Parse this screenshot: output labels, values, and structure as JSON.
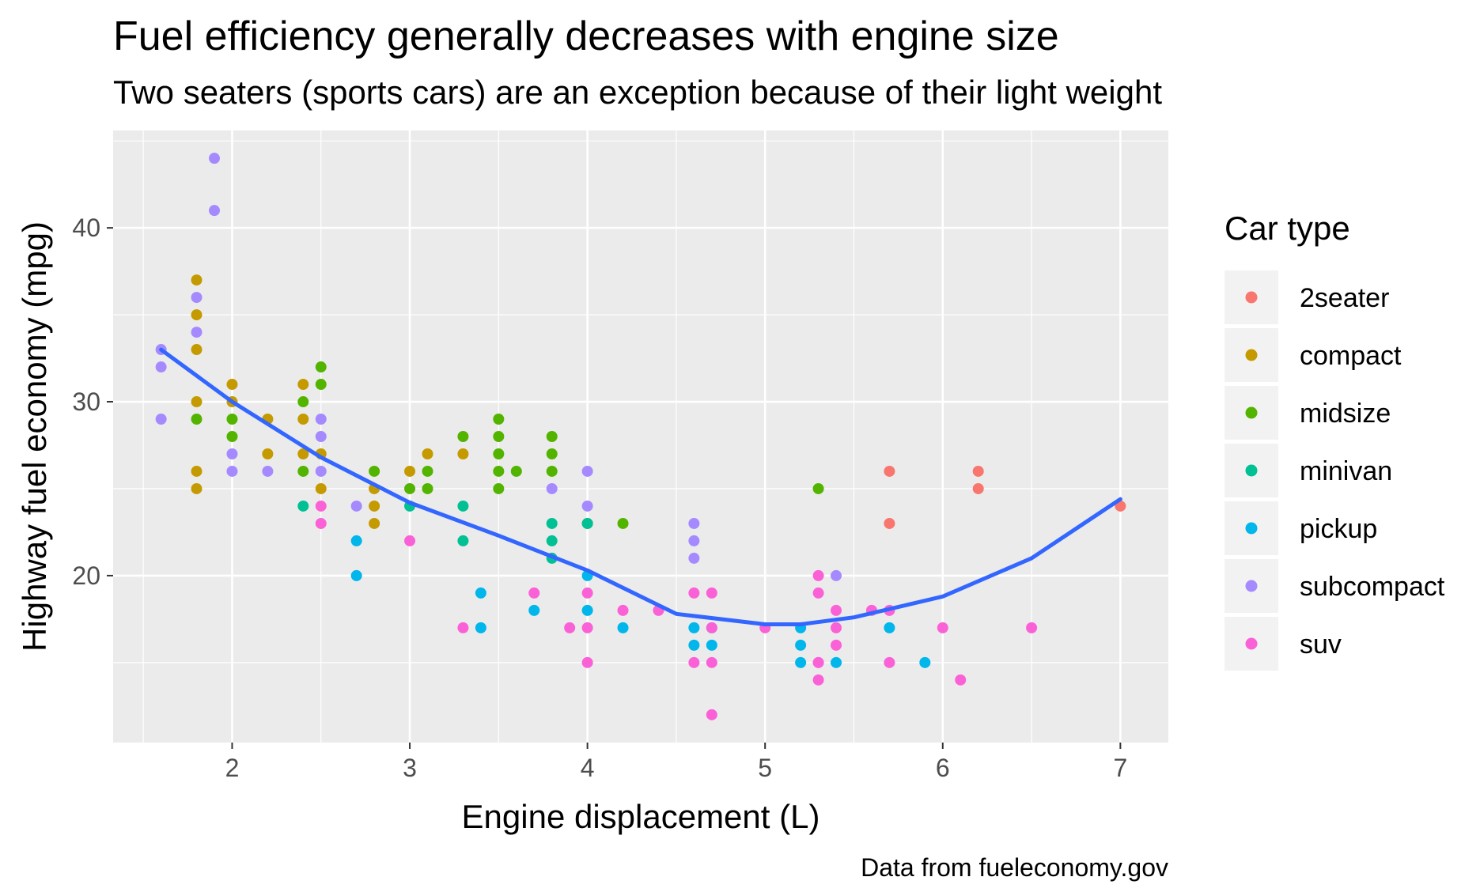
{
  "chart_data": {
    "type": "scatter",
    "title": "Fuel efficiency generally decreases with engine size",
    "subtitle": "Two seaters (sports cars) are an exception because of their light weight",
    "caption": "Data from fueleconomy.gov",
    "xlabel": "Engine displacement (L)",
    "ylabel": "Highway fuel economy (mpg)",
    "xlim": [
      1.33,
      7.27
    ],
    "ylim": [
      10.4,
      45.6
    ],
    "xticks": [
      2,
      3,
      4,
      5,
      6,
      7
    ],
    "yticks": [
      20,
      30,
      40
    ],
    "xtick_labels": [
      "2",
      "3",
      "4",
      "5",
      "6",
      "7"
    ],
    "ytick_labels": [
      "20",
      "30",
      "40"
    ],
    "grid": true,
    "legend": {
      "title": "Car type",
      "position": "right"
    },
    "series": [
      {
        "name": "2seater",
        "color": "#F8766D",
        "x": [
          5.7,
          5.7,
          6.2,
          6.2,
          7.0
        ],
        "y": [
          26,
          23,
          26,
          25,
          24
        ]
      },
      {
        "name": "compact",
        "color": "#C49A00",
        "x": [
          1.8,
          1.8,
          1.8,
          1.8,
          1.8,
          1.8,
          2.0,
          2.0,
          2.2,
          2.2,
          2.4,
          2.4,
          2.4,
          2.5,
          2.5,
          2.8,
          2.8,
          2.8,
          3.0,
          3.1,
          3.3
        ],
        "y": [
          37,
          35,
          33,
          30,
          26,
          25,
          31,
          30,
          29,
          27,
          31,
          29,
          27,
          27,
          25,
          25,
          24,
          23,
          26,
          27,
          27
        ]
      },
      {
        "name": "midsize",
        "color": "#53B400",
        "x": [
          1.8,
          2.0,
          2.0,
          2.4,
          2.4,
          2.5,
          2.5,
          2.8,
          3.0,
          3.1,
          3.1,
          3.3,
          3.5,
          3.5,
          3.5,
          3.5,
          3.5,
          3.6,
          3.8,
          3.8,
          3.8,
          4.0,
          4.2,
          5.3
        ],
        "y": [
          29,
          29,
          28,
          30,
          26,
          32,
          31,
          26,
          25,
          26,
          25,
          28,
          29,
          28,
          27,
          26,
          25,
          26,
          28,
          27,
          26,
          23,
          23,
          25
        ]
      },
      {
        "name": "minivan",
        "color": "#00C094",
        "x": [
          2.4,
          3.0,
          3.3,
          3.3,
          3.8,
          3.8,
          3.8,
          4.0
        ],
        "y": [
          24,
          24,
          24,
          22,
          23,
          22,
          21,
          23
        ]
      },
      {
        "name": "pickup",
        "color": "#00B6EB",
        "x": [
          2.7,
          2.7,
          3.4,
          3.4,
          3.7,
          4.0,
          4.0,
          4.2,
          4.6,
          4.6,
          4.7,
          4.7,
          5.2,
          5.2,
          5.2,
          5.4,
          5.7,
          5.9
        ],
        "y": [
          22,
          20,
          19,
          17,
          18,
          20,
          18,
          17,
          17,
          16,
          17,
          16,
          17,
          16,
          15,
          15,
          17,
          15
        ]
      },
      {
        "name": "subcompact",
        "color": "#A58AFF",
        "x": [
          1.6,
          1.6,
          1.6,
          1.8,
          1.8,
          1.9,
          1.9,
          2.0,
          2.0,
          2.2,
          2.5,
          2.5,
          2.5,
          2.7,
          3.8,
          4.0,
          4.0,
          4.6,
          4.6,
          4.6,
          5.4
        ],
        "y": [
          33,
          32,
          29,
          36,
          34,
          44,
          41,
          27,
          26,
          26,
          29,
          28,
          26,
          24,
          25,
          26,
          24,
          23,
          22,
          21,
          20
        ]
      },
      {
        "name": "suv",
        "color": "#FB61D7",
        "x": [
          2.5,
          2.5,
          3.0,
          3.3,
          3.7,
          3.9,
          4.0,
          4.0,
          4.0,
          4.2,
          4.4,
          4.6,
          4.6,
          4.7,
          4.7,
          4.7,
          4.7,
          5.0,
          5.3,
          5.3,
          5.3,
          5.3,
          5.3,
          5.4,
          5.4,
          5.4,
          5.6,
          5.7,
          5.7,
          6.0,
          6.1,
          6.5
        ],
        "y": [
          24,
          23,
          22,
          17,
          19,
          17,
          19,
          17,
          15,
          18,
          18,
          19,
          15,
          19,
          17,
          15,
          12,
          17,
          20,
          19,
          15,
          14,
          15,
          18,
          17,
          16,
          18,
          18,
          15,
          17,
          14,
          17
        ]
      },
      {
        "name": "",
        "type": "line",
        "color": "#3366FF",
        "x": [
          1.6,
          2.0,
          2.5,
          3.0,
          3.5,
          4.0,
          4.5,
          5.0,
          5.2,
          5.5,
          6.0,
          6.5,
          7.0
        ],
        "y": [
          33.0,
          30.0,
          26.8,
          24.2,
          22.3,
          20.3,
          17.8,
          17.2,
          17.2,
          17.6,
          18.8,
          21.0,
          24.4
        ]
      }
    ]
  }
}
